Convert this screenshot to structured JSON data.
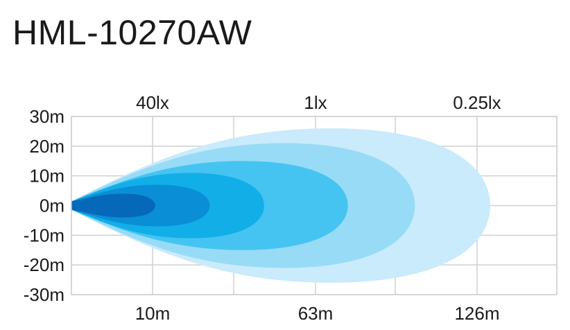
{
  "title": "HML-10270AW",
  "chart_data": {
    "type": "area",
    "title": "HML-10270AW",
    "y_ticks": [
      "30m",
      "20m",
      "10m",
      "0m",
      "-10m",
      "-20m",
      "-30m"
    ],
    "ylim": [
      -30,
      30
    ],
    "x_bottom_labels": [
      "10m",
      "63m",
      "126m"
    ],
    "x_top_labels": [
      "40lx",
      "1lx",
      "0.25lx"
    ],
    "grid": true,
    "series": [
      {
        "reach": 1.0,
        "half_width": 26,
        "color": "#c9ebfb"
      },
      {
        "reach": 0.82,
        "half_width": 21,
        "color": "#97dbf7"
      },
      {
        "reach": 0.66,
        "half_width": 15,
        "color": "#45c4f1"
      },
      {
        "reach": 0.46,
        "half_width": 11,
        "color": "#12aee8"
      },
      {
        "reach": 0.33,
        "half_width": 7,
        "color": "#0a8ed6"
      },
      {
        "reach": 0.2,
        "half_width": 4,
        "color": "#0568b8"
      }
    ]
  }
}
